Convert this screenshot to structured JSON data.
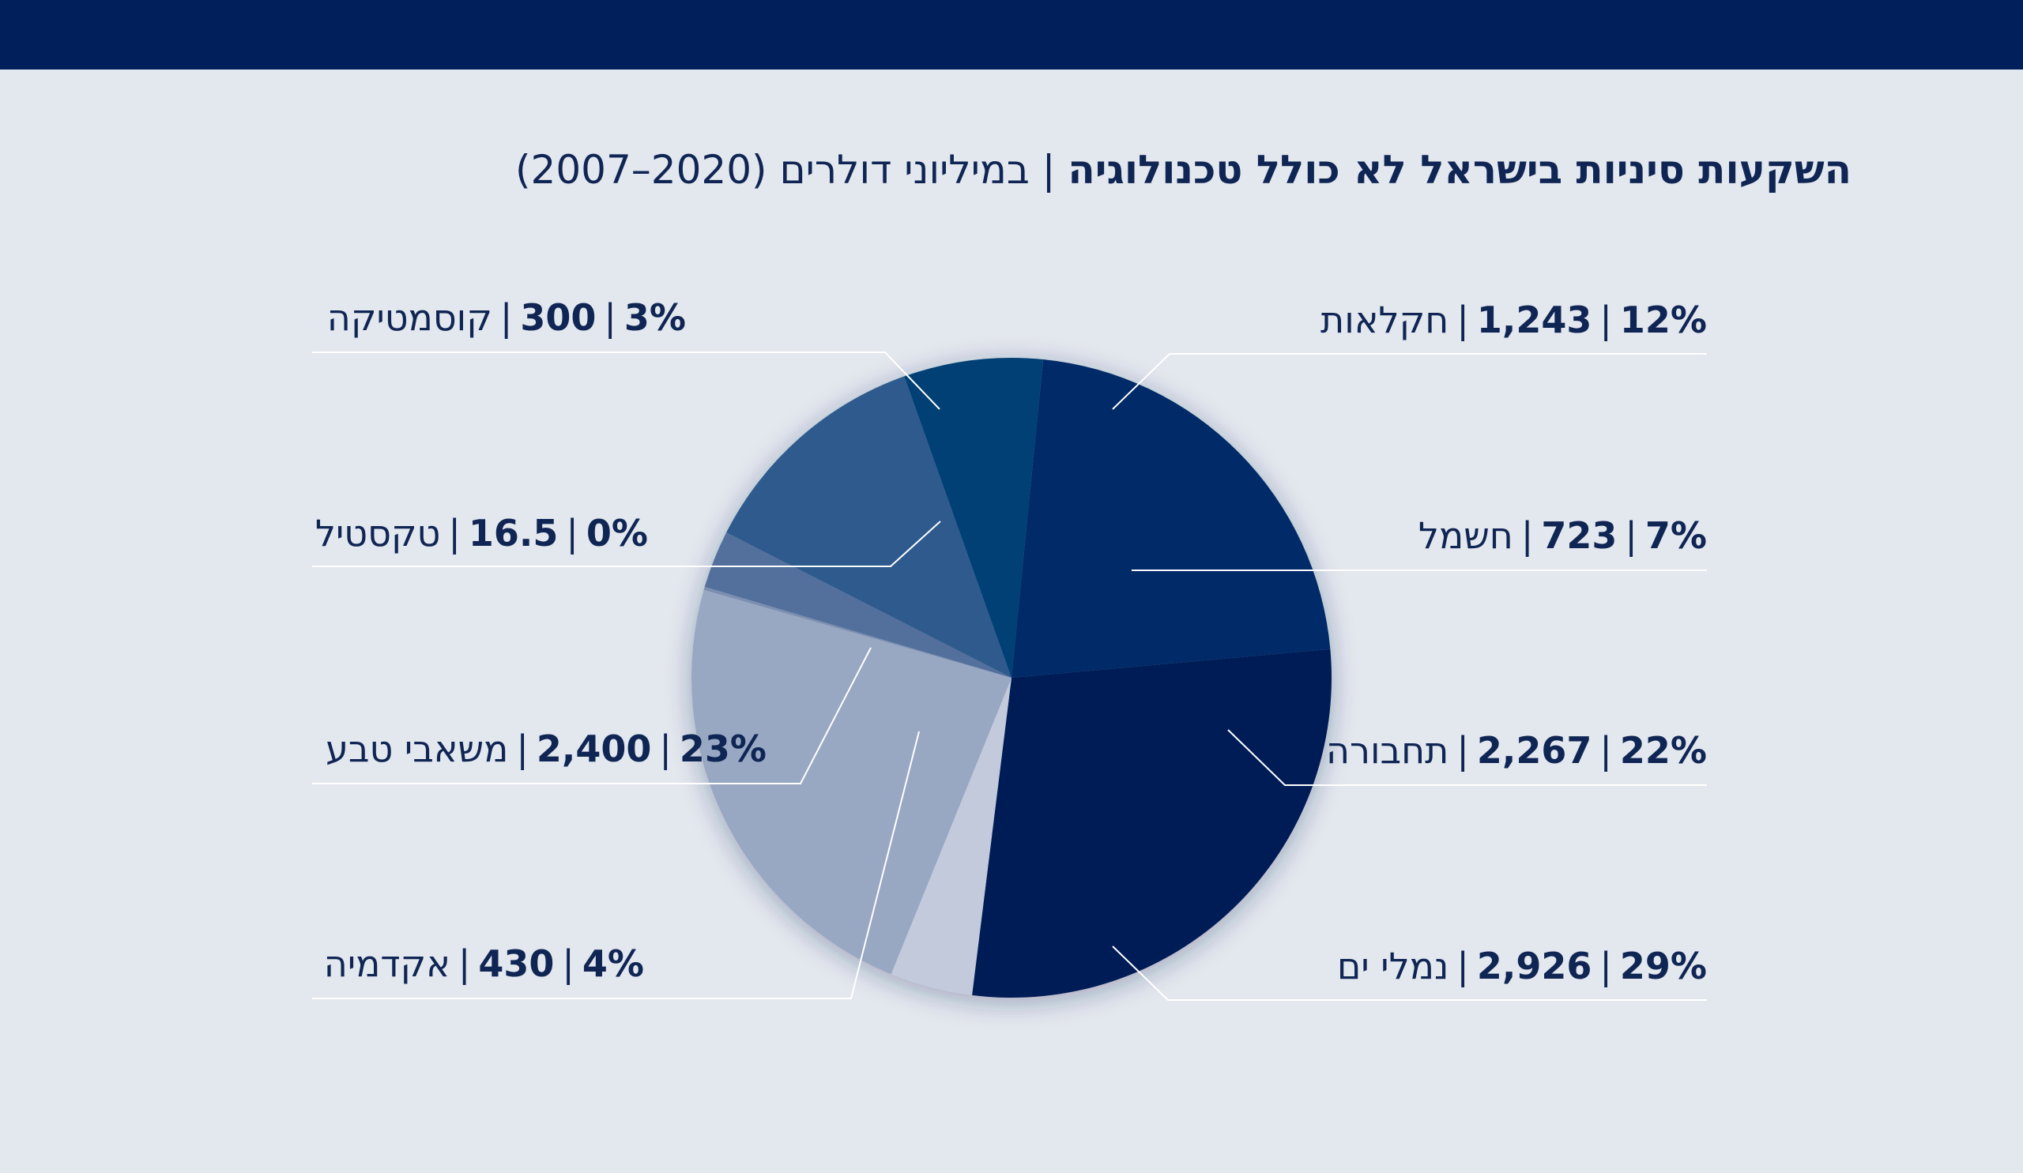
{
  "header": {
    "bar_color": "#001f5b"
  },
  "title": {
    "bold": "השקעות סיניות בישראל לא כולל טכנולוגיה",
    "separator": "|",
    "subtitle": "במיליוני דולרים",
    "years": "(2007–2020)"
  },
  "chart_data": {
    "type": "pie",
    "title": "השקעות סיניות בישראל לא כולל טכנולוגיה | במיליוני דולרים (2007–2020)",
    "units": "millions USD",
    "slices": [
      {
        "key": "agriculture",
        "name": "חקלאות",
        "value": 1243,
        "value_label": "1,243",
        "percent_label": "12%",
        "color": "#2d5a8e"
      },
      {
        "key": "electricity",
        "name": "חשמל",
        "value": 723,
        "value_label": "723",
        "percent_label": "7%",
        "color": "#003f74"
      },
      {
        "key": "transport",
        "name": "תחבורה",
        "value": 2267,
        "value_label": "2,267",
        "percent_label": "22%",
        "color": "#002c67"
      },
      {
        "key": "seaports",
        "name": "נמלי ים",
        "value": 2926,
        "value_label": "2,926",
        "percent_label": "29%",
        "color": "#001e56"
      },
      {
        "key": "academia",
        "name": "אקדמיה",
        "value": 430,
        "value_label": "430",
        "percent_label": "4%",
        "color": "#c2cadb"
      },
      {
        "key": "natural_resources",
        "name": "משאבי טבע",
        "value": 2400,
        "value_label": "2,400",
        "percent_label": "23%",
        "color": "#98a8c3"
      },
      {
        "key": "textile",
        "name": "טקסטיל",
        "value": 16.5,
        "value_label": "16.5",
        "percent_label": "0%",
        "color": "#7b8fb0"
      },
      {
        "key": "cosmetics",
        "name": "קוסמטיקה",
        "value": 300,
        "value_label": "300",
        "percent_label": "3%",
        "color": "#53709d"
      }
    ]
  },
  "labels": {
    "agriculture": {
      "pct": "12%",
      "val": "1,243",
      "name": "חקלאות"
    },
    "electricity": {
      "pct": "7%",
      "val": "723",
      "name": "חשמל"
    },
    "transport": {
      "pct": "22%",
      "val": "2,267",
      "name": "תחבורה"
    },
    "seaports": {
      "pct": "29%",
      "val": "2,926",
      "name": "נמלי ים"
    },
    "cosmetics": {
      "pct": "3%",
      "val": "300",
      "name": "קוסמטיקה"
    },
    "textile": {
      "pct": "0%",
      "val": "16.5",
      "name": "טקסטיל"
    },
    "natural_resources": {
      "pct": "23%",
      "val": "2,400",
      "name": "משאבי טבע"
    },
    "academia": {
      "pct": "4%",
      "val": "430",
      "name": "אקדמיה"
    },
    "separator": "|"
  }
}
